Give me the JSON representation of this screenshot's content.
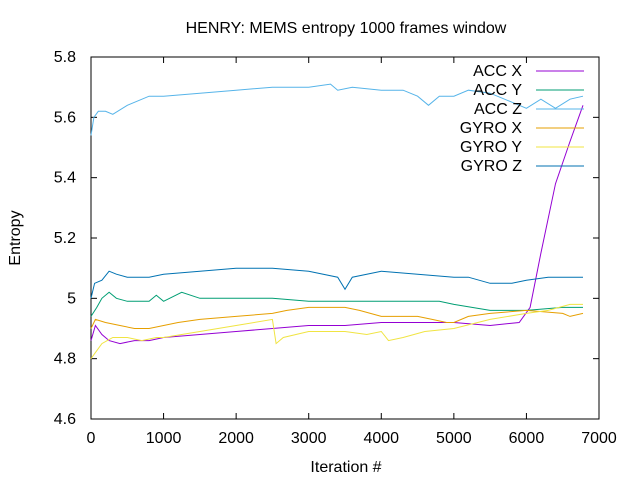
{
  "chart_data": {
    "type": "line",
    "title": "HENRY: MEMS entropy 1000 frames window",
    "xlabel": "Iteration #",
    "ylabel": "Entropy",
    "xlim": [
      0,
      7000
    ],
    "ylim": [
      4.6,
      5.8
    ],
    "xticks": [
      0,
      1000,
      2000,
      3000,
      4000,
      5000,
      6000,
      7000
    ],
    "yticks": [
      4.6,
      4.8,
      5.0,
      5.2,
      5.4,
      5.6,
      5.8
    ],
    "xtick_labels": [
      "0",
      "1000",
      "2000",
      "3000",
      "4000",
      "5000",
      "6000",
      "7000"
    ],
    "ytick_labels": [
      "4.6",
      "4.8",
      "5",
      "5.2",
      "5.4",
      "5.6",
      "5.8"
    ],
    "grid": false,
    "legend_position": "top-right",
    "series": [
      {
        "name": "ACC X",
        "color": "#9400d3",
        "points": [
          [
            0,
            4.86
          ],
          [
            60,
            4.91
          ],
          [
            150,
            4.88
          ],
          [
            250,
            4.86
          ],
          [
            400,
            4.85
          ],
          [
            600,
            4.86
          ],
          [
            800,
            4.86
          ],
          [
            1000,
            4.87
          ],
          [
            1500,
            4.88
          ],
          [
            2000,
            4.89
          ],
          [
            2500,
            4.9
          ],
          [
            3000,
            4.91
          ],
          [
            3500,
            4.91
          ],
          [
            4000,
            4.92
          ],
          [
            4500,
            4.92
          ],
          [
            5000,
            4.92
          ],
          [
            5500,
            4.91
          ],
          [
            5900,
            4.92
          ],
          [
            6050,
            4.97
          ],
          [
            6200,
            5.15
          ],
          [
            6400,
            5.38
          ],
          [
            6600,
            5.52
          ],
          [
            6780,
            5.64
          ]
        ]
      },
      {
        "name": "ACC Y",
        "color": "#009e73",
        "points": [
          [
            0,
            4.94
          ],
          [
            80,
            4.97
          ],
          [
            150,
            5.0
          ],
          [
            250,
            5.02
          ],
          [
            350,
            5.0
          ],
          [
            500,
            4.99
          ],
          [
            800,
            4.99
          ],
          [
            900,
            5.01
          ],
          [
            1000,
            4.99
          ],
          [
            1250,
            5.02
          ],
          [
            1500,
            5.0
          ],
          [
            2000,
            5.0
          ],
          [
            2500,
            5.0
          ],
          [
            3000,
            4.99
          ],
          [
            3500,
            4.99
          ],
          [
            4000,
            4.99
          ],
          [
            4500,
            4.99
          ],
          [
            4800,
            4.99
          ],
          [
            5000,
            4.98
          ],
          [
            5500,
            4.96
          ],
          [
            6000,
            4.96
          ],
          [
            6500,
            4.97
          ],
          [
            6780,
            4.97
          ]
        ]
      },
      {
        "name": "ACC Z",
        "color": "#56b4e9",
        "points": [
          [
            0,
            5.54
          ],
          [
            40,
            5.6
          ],
          [
            100,
            5.62
          ],
          [
            200,
            5.62
          ],
          [
            300,
            5.61
          ],
          [
            500,
            5.64
          ],
          [
            800,
            5.67
          ],
          [
            1000,
            5.67
          ],
          [
            1500,
            5.68
          ],
          [
            2000,
            5.69
          ],
          [
            2500,
            5.7
          ],
          [
            3000,
            5.7
          ],
          [
            3300,
            5.71
          ],
          [
            3400,
            5.69
          ],
          [
            3600,
            5.7
          ],
          [
            4000,
            5.69
          ],
          [
            4300,
            5.69
          ],
          [
            4500,
            5.67
          ],
          [
            4650,
            5.64
          ],
          [
            4800,
            5.67
          ],
          [
            5000,
            5.67
          ],
          [
            5200,
            5.69
          ],
          [
            5500,
            5.68
          ],
          [
            5800,
            5.65
          ],
          [
            6000,
            5.63
          ],
          [
            6200,
            5.66
          ],
          [
            6400,
            5.63
          ],
          [
            6600,
            5.66
          ],
          [
            6780,
            5.67
          ]
        ]
      },
      {
        "name": "GYRO X",
        "color": "#e69f00",
        "points": [
          [
            0,
            4.9
          ],
          [
            60,
            4.93
          ],
          [
            200,
            4.92
          ],
          [
            400,
            4.91
          ],
          [
            600,
            4.9
          ],
          [
            800,
            4.9
          ],
          [
            1000,
            4.91
          ],
          [
            1200,
            4.92
          ],
          [
            1500,
            4.93
          ],
          [
            2000,
            4.94
          ],
          [
            2500,
            4.95
          ],
          [
            2700,
            4.96
          ],
          [
            3000,
            4.97
          ],
          [
            3500,
            4.97
          ],
          [
            3700,
            4.96
          ],
          [
            4000,
            4.94
          ],
          [
            4300,
            4.94
          ],
          [
            4500,
            4.94
          ],
          [
            4700,
            4.93
          ],
          [
            4900,
            4.92
          ],
          [
            5000,
            4.92
          ],
          [
            5200,
            4.94
          ],
          [
            5500,
            4.95
          ],
          [
            6000,
            4.96
          ],
          [
            6500,
            4.95
          ],
          [
            6600,
            4.94
          ],
          [
            6780,
            4.95
          ]
        ]
      },
      {
        "name": "GYRO Y",
        "color": "#f0e442",
        "points": [
          [
            0,
            4.8
          ],
          [
            60,
            4.82
          ],
          [
            150,
            4.85
          ],
          [
            300,
            4.87
          ],
          [
            500,
            4.87
          ],
          [
            700,
            4.86
          ],
          [
            900,
            4.87
          ],
          [
            1000,
            4.87
          ],
          [
            1500,
            4.89
          ],
          [
            2000,
            4.91
          ],
          [
            2500,
            4.93
          ],
          [
            2550,
            4.85
          ],
          [
            2650,
            4.87
          ],
          [
            3000,
            4.89
          ],
          [
            3500,
            4.89
          ],
          [
            3800,
            4.88
          ],
          [
            4000,
            4.89
          ],
          [
            4100,
            4.86
          ],
          [
            4300,
            4.87
          ],
          [
            4600,
            4.89
          ],
          [
            5000,
            4.9
          ],
          [
            5500,
            4.93
          ],
          [
            6000,
            4.95
          ],
          [
            6300,
            4.96
          ],
          [
            6600,
            4.98
          ],
          [
            6780,
            4.98
          ]
        ]
      },
      {
        "name": "GYRO Z",
        "color": "#0072b2",
        "points": [
          [
            0,
            5.0
          ],
          [
            50,
            5.05
          ],
          [
            150,
            5.06
          ],
          [
            250,
            5.09
          ],
          [
            350,
            5.08
          ],
          [
            500,
            5.07
          ],
          [
            800,
            5.07
          ],
          [
            1000,
            5.08
          ],
          [
            1500,
            5.09
          ],
          [
            2000,
            5.1
          ],
          [
            2500,
            5.1
          ],
          [
            3000,
            5.09
          ],
          [
            3400,
            5.07
          ],
          [
            3500,
            5.03
          ],
          [
            3600,
            5.07
          ],
          [
            4000,
            5.09
          ],
          [
            4500,
            5.08
          ],
          [
            5000,
            5.07
          ],
          [
            5200,
            5.07
          ],
          [
            5500,
            5.05
          ],
          [
            5800,
            5.05
          ],
          [
            6000,
            5.06
          ],
          [
            6300,
            5.07
          ],
          [
            6500,
            5.07
          ],
          [
            6780,
            5.07
          ]
        ]
      }
    ]
  }
}
